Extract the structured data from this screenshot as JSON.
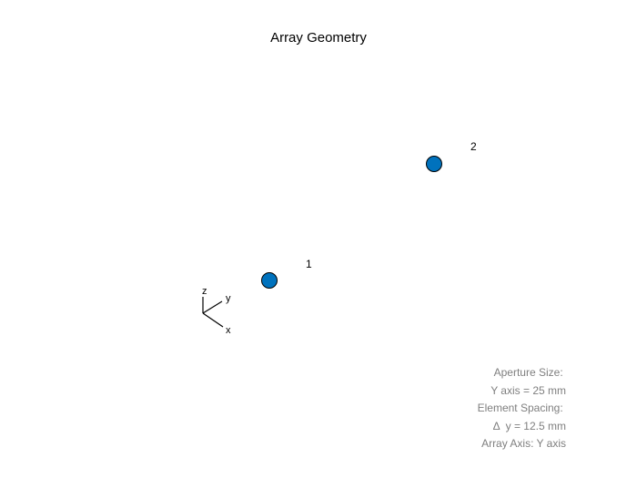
{
  "title": "Array Geometry",
  "elements": [
    {
      "label": "1",
      "color": "#0072BD"
    },
    {
      "label": "2",
      "color": "#0072BD"
    }
  ],
  "axes": {
    "x": "x",
    "y": "y",
    "z": "z"
  },
  "info": {
    "lines": [
      "Aperture Size: ",
      "Y axis = 25 mm",
      "Element Spacing: ",
      "Δ  y = 12.5 mm",
      "Array Axis: Y axis"
    ]
  }
}
